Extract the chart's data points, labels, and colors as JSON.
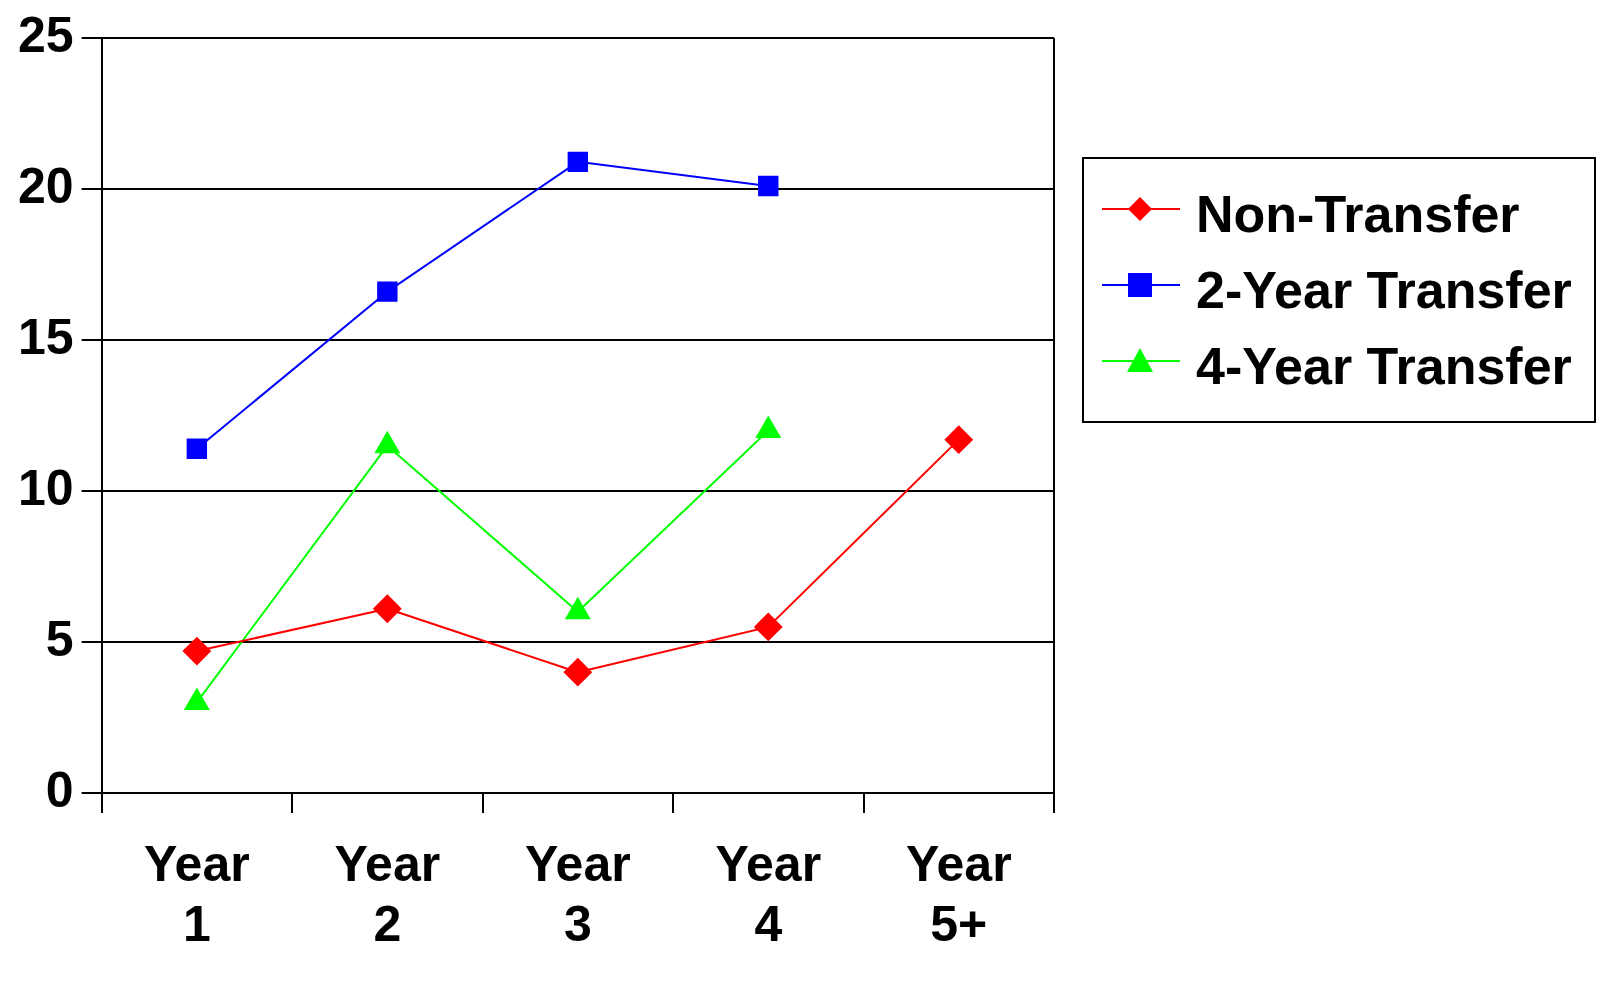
{
  "chart_data": {
    "type": "line",
    "categories": [
      "Year 1",
      "Year 2",
      "Year 3",
      "Year 4",
      "Year 5+"
    ],
    "series": [
      {
        "name": "Non-Transfer",
        "color": "#ff0000",
        "marker": "diamond",
        "values": [
          4.7,
          6.1,
          4.0,
          5.5,
          11.7
        ]
      },
      {
        "name": "2-Year Transfer",
        "color": "#0000ff",
        "marker": "square",
        "values": [
          11.4,
          16.6,
          20.9,
          20.1,
          null
        ]
      },
      {
        "name": "4-Year Transfer",
        "color": "#00ff00",
        "marker": "triangle",
        "values": [
          3.0,
          11.5,
          6.0,
          12.0,
          null
        ]
      }
    ],
    "ylim": [
      0,
      25
    ],
    "yticks": [
      0,
      5,
      10,
      15,
      20,
      25
    ],
    "grid": "y",
    "legend": "right",
    "line_style": "solid"
  }
}
